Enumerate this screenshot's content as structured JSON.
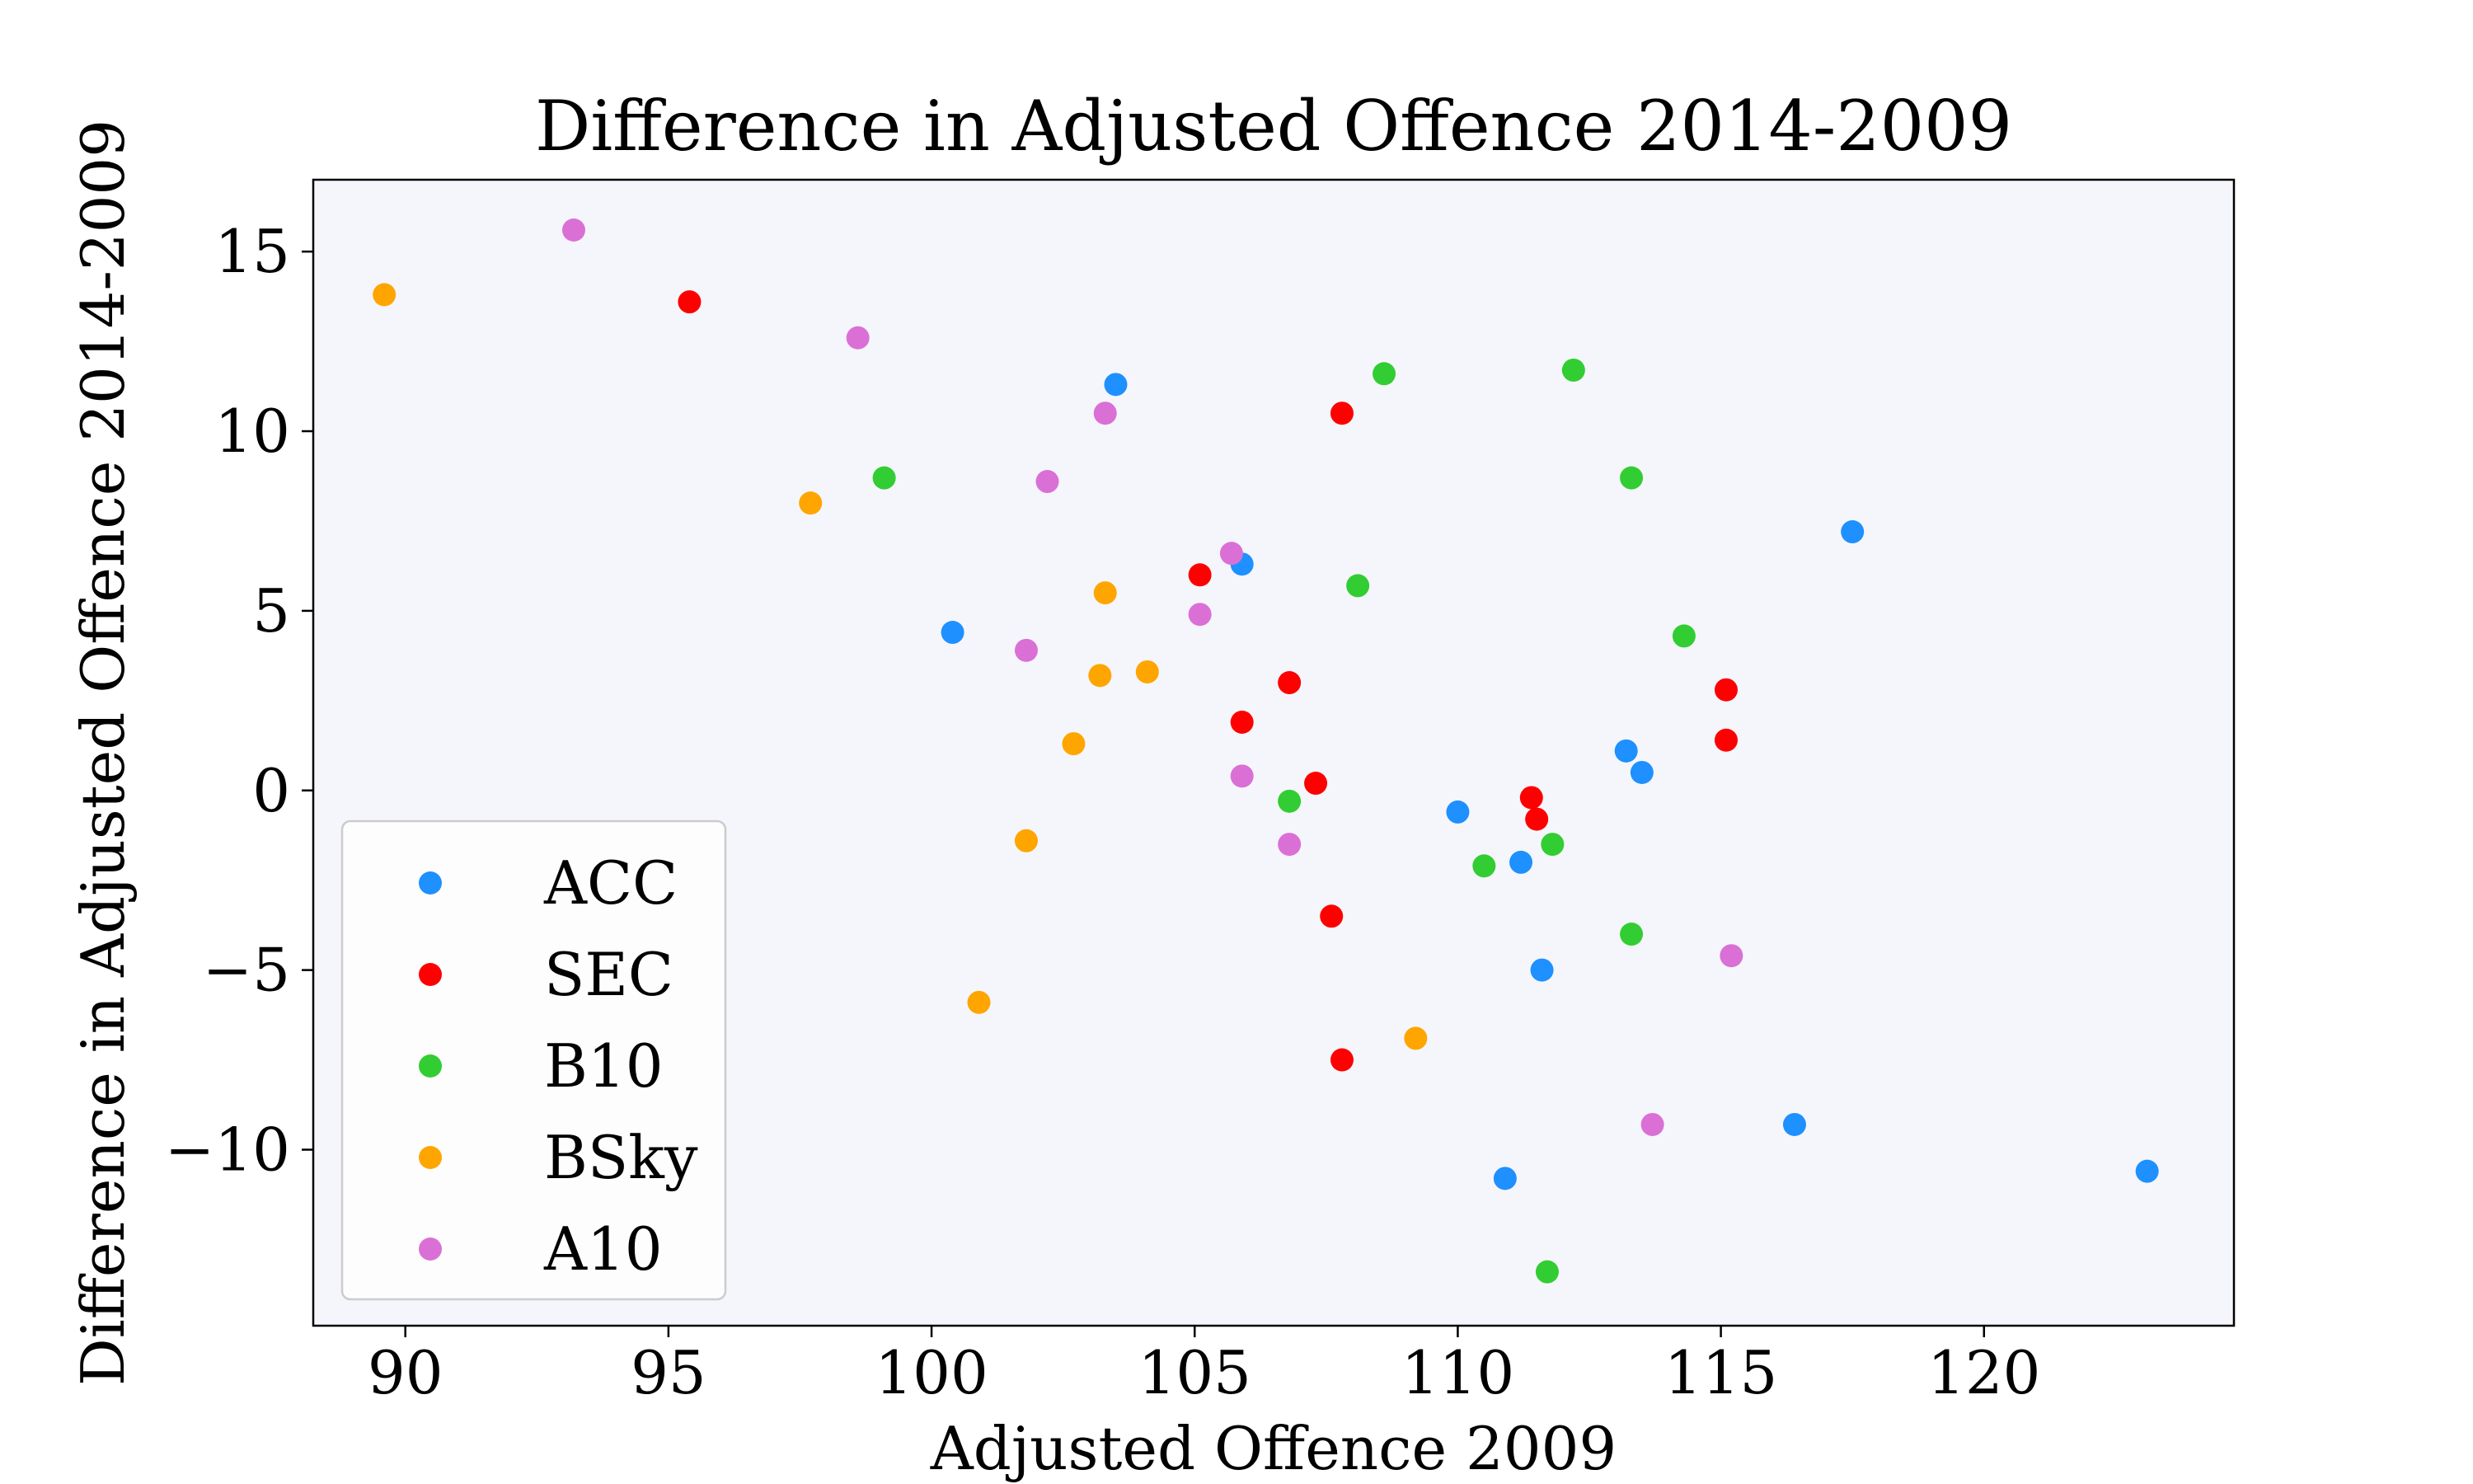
{
  "chart_data": {
    "type": "scatter",
    "title": "Difference in Adjusted Offence 2014-2009",
    "xlabel": "Adjusted Offence 2009",
    "ylabel": "Difference in Adjusted Offence 2014-2009",
    "xlim": [
      88.25,
      124.75
    ],
    "ylim": [
      -14.9,
      17.0
    ],
    "x_ticks": [
      90,
      95,
      100,
      105,
      110,
      115,
      120
    ],
    "y_ticks": [
      -10,
      -5,
      0,
      5,
      10,
      15
    ],
    "x_tick_labels": [
      "90",
      "95",
      "100",
      "105",
      "110",
      "115",
      "120"
    ],
    "y_tick_labels": [
      "−10",
      "−5",
      "0",
      "5",
      "10",
      "15"
    ],
    "grid": false,
    "legend": {
      "position": "lower-left"
    },
    "plot_background": "#f5f6fb",
    "series": [
      {
        "name": "ACC",
        "color": "#1e90ff",
        "points": [
          [
            103.5,
            11.3
          ],
          [
            105.9,
            6.3
          ],
          [
            100.4,
            4.4
          ],
          [
            117.5,
            7.2
          ],
          [
            113.2,
            1.1
          ],
          [
            113.5,
            0.5
          ],
          [
            110.0,
            -0.6
          ],
          [
            111.2,
            -2.0
          ],
          [
            111.6,
            -5.0
          ],
          [
            116.4,
            -9.3
          ],
          [
            110.9,
            -10.8
          ],
          [
            123.1,
            -10.6
          ]
        ]
      },
      {
        "name": "SEC",
        "color": "#ff0000",
        "points": [
          [
            95.4,
            13.6
          ],
          [
            107.8,
            10.5
          ],
          [
            105.1,
            6.0
          ],
          [
            106.8,
            3.0
          ],
          [
            105.9,
            1.9
          ],
          [
            115.1,
            2.8
          ],
          [
            115.1,
            1.4
          ],
          [
            107.3,
            0.2
          ],
          [
            111.4,
            -0.2
          ],
          [
            111.5,
            -0.8
          ],
          [
            107.6,
            -3.5
          ],
          [
            107.8,
            -7.5
          ]
        ]
      },
      {
        "name": "B10",
        "color": "#32cd32",
        "points": [
          [
            108.6,
            11.6
          ],
          [
            112.2,
            11.7
          ],
          [
            99.1,
            8.7
          ],
          [
            113.3,
            8.7
          ],
          [
            108.1,
            5.7
          ],
          [
            114.3,
            4.3
          ],
          [
            106.8,
            -0.3
          ],
          [
            111.8,
            -1.5
          ],
          [
            110.5,
            -2.1
          ],
          [
            113.3,
            -4.0
          ],
          [
            111.7,
            -13.4
          ]
        ]
      },
      {
        "name": "BSky",
        "color": "#ffa500",
        "points": [
          [
            89.6,
            13.8
          ],
          [
            97.7,
            8.0
          ],
          [
            103.3,
            5.5
          ],
          [
            104.1,
            3.3
          ],
          [
            103.2,
            3.2
          ],
          [
            102.7,
            1.3
          ],
          [
            101.8,
            -1.4
          ],
          [
            100.9,
            -5.9
          ],
          [
            109.2,
            -6.9
          ]
        ]
      },
      {
        "name": "A10",
        "color": "#da70d6",
        "points": [
          [
            93.2,
            15.6
          ],
          [
            98.6,
            12.6
          ],
          [
            103.3,
            10.5
          ],
          [
            102.2,
            8.6
          ],
          [
            105.7,
            6.6
          ],
          [
            105.1,
            4.9
          ],
          [
            101.8,
            3.9
          ],
          [
            105.9,
            0.4
          ],
          [
            106.8,
            -1.5
          ],
          [
            115.2,
            -4.6
          ],
          [
            113.7,
            -9.3
          ]
        ]
      }
    ]
  }
}
